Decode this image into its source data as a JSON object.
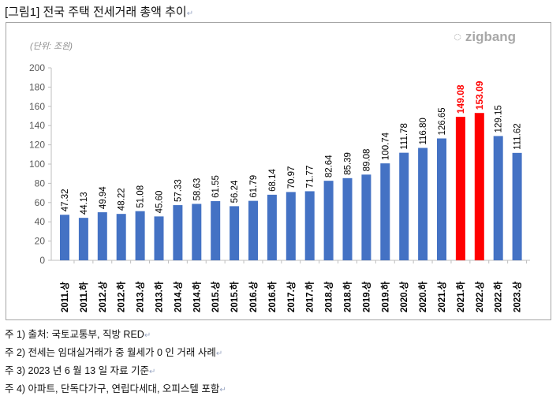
{
  "document": {
    "title": "[그림1] 전국 주택 전세거래 총액 추이",
    "notes": [
      "주 1)  출처:  국토교통부,  직방 RED",
      "주 2)  전세는  임대실거래가  중  월세가  0 인  거래  사례",
      "주 3) 2023 년  6 월  13 일  자료  기준",
      "주 4)  아파트,  단독다가구,  연립다세대,  오피스텔  포함"
    ],
    "paragraph_mark": "↵"
  },
  "logo": "zigbang",
  "chart_data": {
    "type": "bar",
    "unit_label": "(단위: 조원)",
    "categories": [
      "2011.상",
      "2011.하",
      "2012.상",
      "2012.하",
      "2013.상",
      "2013.하",
      "2014.상",
      "2014.하",
      "2015.상",
      "2015.하",
      "2016.상",
      "2016.하",
      "2017.상",
      "2017.하",
      "2018.상",
      "2018.하",
      "2019.상",
      "2019.하",
      "2020.상",
      "2020.하",
      "2021.상",
      "2021.하",
      "2022.상",
      "2022.하",
      "2023.상"
    ],
    "values": [
      47.32,
      44.13,
      49.94,
      48.22,
      51.08,
      45.6,
      57.33,
      58.63,
      61.55,
      56.24,
      61.79,
      68.14,
      70.97,
      71.77,
      82.64,
      85.39,
      89.08,
      100.74,
      111.78,
      116.8,
      126.65,
      149.08,
      153.09,
      129.15,
      111.62
    ],
    "data_labels": [
      "47.32",
      "44.13",
      "49.94",
      "48.22",
      "51.08",
      "45.60",
      "57.33",
      "58.63",
      "61.55",
      "56.24",
      "61.79",
      "68.14",
      "70.97",
      "71.77",
      "82.64",
      "85.39",
      "89.08",
      "100.74",
      "111.78",
      "116.80",
      "126.65",
      "149.08",
      "153.09",
      "129.15",
      "111.62"
    ],
    "highlight": [
      "2021.하",
      "2022.상"
    ],
    "ylim": [
      0,
      200
    ],
    "yticks": [
      "0",
      "20",
      "40",
      "60",
      "80",
      "100",
      "120",
      "140",
      "160",
      "180",
      "200"
    ],
    "colors": {
      "bar": "#4472c4",
      "highlight": "#ff0000",
      "label": "#000000",
      "highlight_label": "#ff0000"
    },
    "grid": false
  }
}
